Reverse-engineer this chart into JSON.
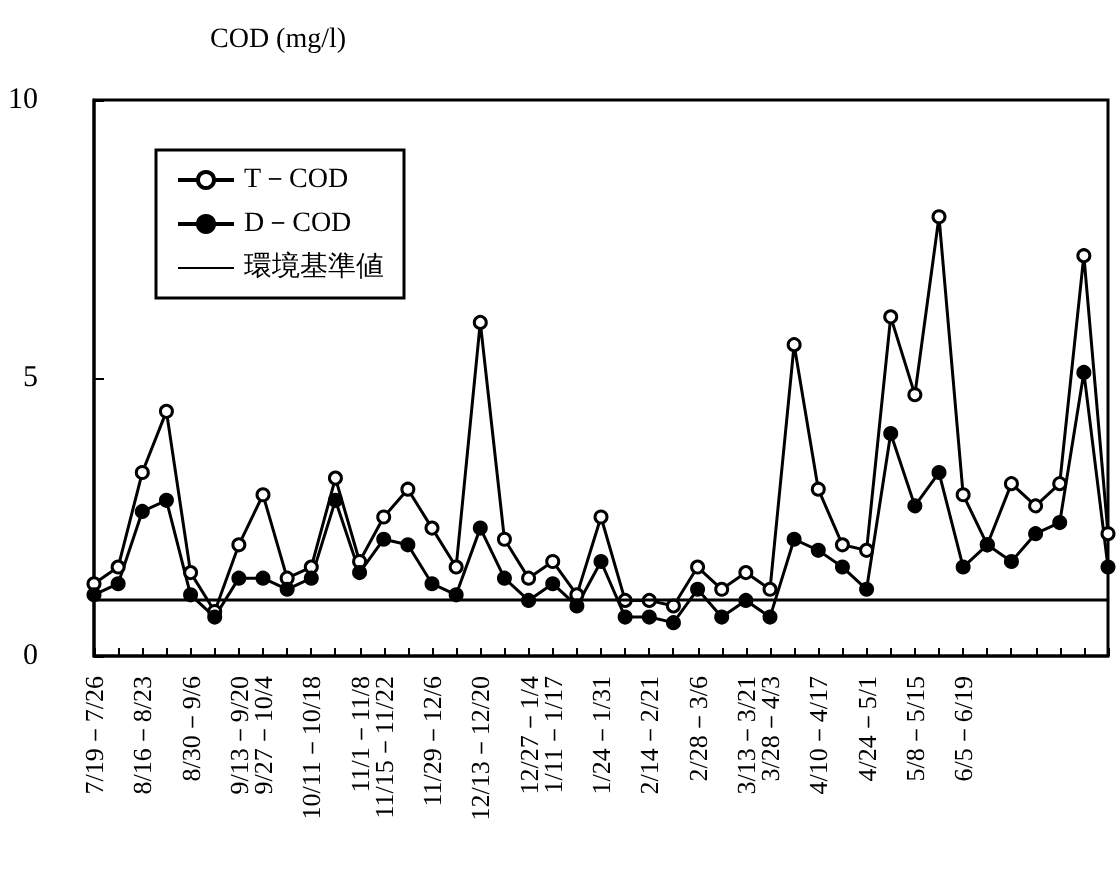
{
  "chart_data": {
    "type": "line",
    "ylabel": "COD (mg/l)",
    "categories": [
      "7/19－7/26",
      null,
      "8/16－8/23",
      null,
      "8/30－9/6",
      null,
      "9/13－9/20",
      "9/27－10/4",
      null,
      "10/11－10/18",
      null,
      "11/1－11/8",
      "11/15－11/22",
      null,
      "11/29－12/6",
      null,
      "12/13－12/20",
      null,
      "12/27－1/4",
      "1/11－1/17",
      null,
      "1/24－1/31",
      null,
      "2/14－2/21",
      null,
      "2/28－3/6",
      null,
      "3/13－3/21",
      "3/28－4/3",
      null,
      "4/10－4/17",
      null,
      "4/24－5/1",
      null,
      "5/8－5/15",
      null,
      "6/5－6/19",
      null,
      null,
      null,
      null,
      null,
      null
    ],
    "series": [
      {
        "name": "T－COD",
        "color": "#000000",
        "marker": "circle",
        "values": [
          1.3,
          1.6,
          3.3,
          4.4,
          1.5,
          0.8,
          2.0,
          2.9,
          1.4,
          1.6,
          3.2,
          1.7,
          2.5,
          3.0,
          2.3,
          1.6,
          6.0,
          2.1,
          1.4,
          1.7,
          1.1,
          2.5,
          1.0,
          1.0,
          0.9,
          1.6,
          1.2,
          1.5,
          1.2,
          5.6,
          3.0,
          2.0,
          1.9,
          6.1,
          4.7,
          7.9,
          2.9,
          2.0,
          3.1,
          2.7,
          3.1,
          7.2,
          2.2
        ]
      },
      {
        "name": "D－COD",
        "color": "#000000",
        "marker": "circle",
        "values": [
          1.1,
          1.3,
          2.6,
          2.8,
          1.1,
          0.7,
          1.4,
          1.4,
          1.2,
          1.4,
          2.8,
          1.5,
          2.1,
          2.0,
          1.3,
          1.1,
          2.3,
          1.4,
          1.0,
          1.3,
          0.9,
          1.7,
          0.7,
          0.7,
          0.6,
          1.2,
          0.7,
          1.0,
          0.7,
          2.1,
          1.9,
          1.6,
          1.2,
          4.0,
          2.7,
          3.3,
          1.6,
          2.0,
          1.7,
          2.2,
          2.4,
          5.1,
          1.6
        ]
      }
    ],
    "ref_lines": [
      {
        "axis": "y",
        "value": 1,
        "label": "環境基準値",
        "color": "#000000"
      }
    ],
    "ylim": [
      0,
      10
    ],
    "yticks": [
      0,
      5,
      10
    ],
    "grid": false,
    "legend": "top left"
  }
}
